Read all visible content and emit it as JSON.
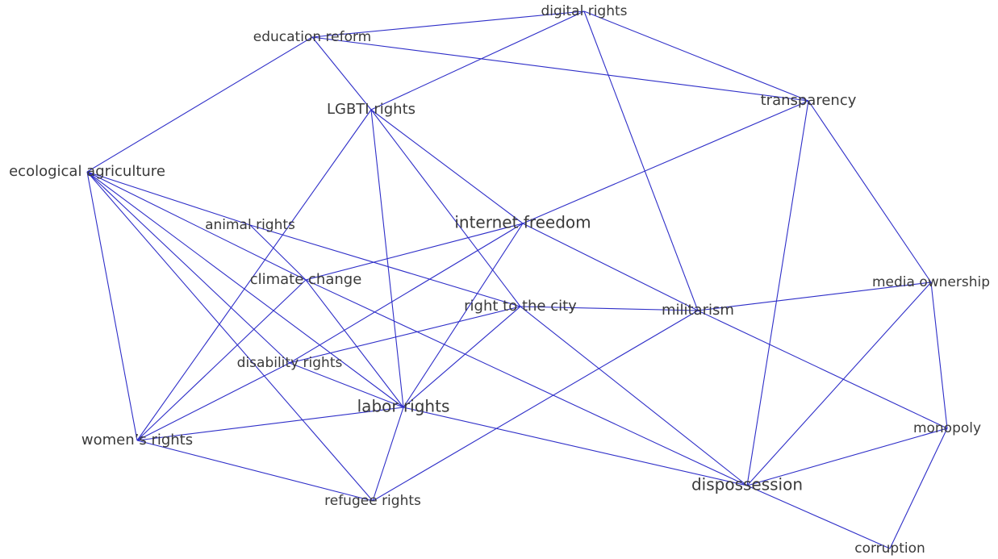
{
  "graph": {
    "nodes": [
      {
        "id": "digital_rights",
        "label": "digital rights"
      },
      {
        "id": "education_reform",
        "label": "education reform"
      },
      {
        "id": "transparency",
        "label": "transparency"
      },
      {
        "id": "lgbti_rights",
        "label": "LGBTI rights"
      },
      {
        "id": "ecological_agriculture",
        "label": "ecological agriculture"
      },
      {
        "id": "animal_rights",
        "label": "animal rights"
      },
      {
        "id": "internet_freedom",
        "label": "internet freedom"
      },
      {
        "id": "climate_change",
        "label": "climate change"
      },
      {
        "id": "right_to_the_city",
        "label": "right to the city"
      },
      {
        "id": "militarism",
        "label": "militarism"
      },
      {
        "id": "media_ownership",
        "label": "media ownership"
      },
      {
        "id": "disability_rights",
        "label": "disability rights"
      },
      {
        "id": "labor_rights",
        "label": "labor rights"
      },
      {
        "id": "womens_rights",
        "label": "women’s rights"
      },
      {
        "id": "monopoly",
        "label": "monopoly"
      },
      {
        "id": "dispossession",
        "label": "dispossession"
      },
      {
        "id": "refugee_rights",
        "label": "refugee rights"
      },
      {
        "id": "corruption",
        "label": "corruption"
      }
    ],
    "edges": [
      [
        "digital_rights",
        "education_reform"
      ],
      [
        "digital_rights",
        "transparency"
      ],
      [
        "digital_rights",
        "lgbti_rights"
      ],
      [
        "digital_rights",
        "militarism"
      ],
      [
        "education_reform",
        "lgbti_rights"
      ],
      [
        "education_reform",
        "transparency"
      ],
      [
        "education_reform",
        "ecological_agriculture"
      ],
      [
        "transparency",
        "internet_freedom"
      ],
      [
        "transparency",
        "dispossession"
      ],
      [
        "transparency",
        "media_ownership"
      ],
      [
        "lgbti_rights",
        "internet_freedom"
      ],
      [
        "lgbti_rights",
        "right_to_the_city"
      ],
      [
        "lgbti_rights",
        "labor_rights"
      ],
      [
        "lgbti_rights",
        "womens_rights"
      ],
      [
        "ecological_agriculture",
        "animal_rights"
      ],
      [
        "ecological_agriculture",
        "climate_change"
      ],
      [
        "ecological_agriculture",
        "disability_rights"
      ],
      [
        "ecological_agriculture",
        "labor_rights"
      ],
      [
        "ecological_agriculture",
        "womens_rights"
      ],
      [
        "ecological_agriculture",
        "refugee_rights"
      ],
      [
        "animal_rights",
        "right_to_the_city"
      ],
      [
        "animal_rights",
        "climate_change"
      ],
      [
        "internet_freedom",
        "climate_change"
      ],
      [
        "internet_freedom",
        "militarism"
      ],
      [
        "internet_freedom",
        "disability_rights"
      ],
      [
        "internet_freedom",
        "labor_rights"
      ],
      [
        "climate_change",
        "labor_rights"
      ],
      [
        "climate_change",
        "dispossession"
      ],
      [
        "climate_change",
        "womens_rights"
      ],
      [
        "right_to_the_city",
        "militarism"
      ],
      [
        "right_to_the_city",
        "disability_rights"
      ],
      [
        "right_to_the_city",
        "labor_rights"
      ],
      [
        "right_to_the_city",
        "dispossession"
      ],
      [
        "militarism",
        "media_ownership"
      ],
      [
        "militarism",
        "monopoly"
      ],
      [
        "militarism",
        "refugee_rights"
      ],
      [
        "media_ownership",
        "dispossession"
      ],
      [
        "media_ownership",
        "monopoly"
      ],
      [
        "disability_rights",
        "labor_rights"
      ],
      [
        "disability_rights",
        "womens_rights"
      ],
      [
        "labor_rights",
        "womens_rights"
      ],
      [
        "labor_rights",
        "dispossession"
      ],
      [
        "labor_rights",
        "refugee_rights"
      ],
      [
        "womens_rights",
        "refugee_rights"
      ],
      [
        "monopoly",
        "dispossession"
      ],
      [
        "monopoly",
        "corruption"
      ],
      [
        "dispossession",
        "corruption"
      ]
    ]
  },
  "colors": {
    "edge": "#2e2ec8",
    "label": "#3a3a3a",
    "background": "#ffffff"
  }
}
